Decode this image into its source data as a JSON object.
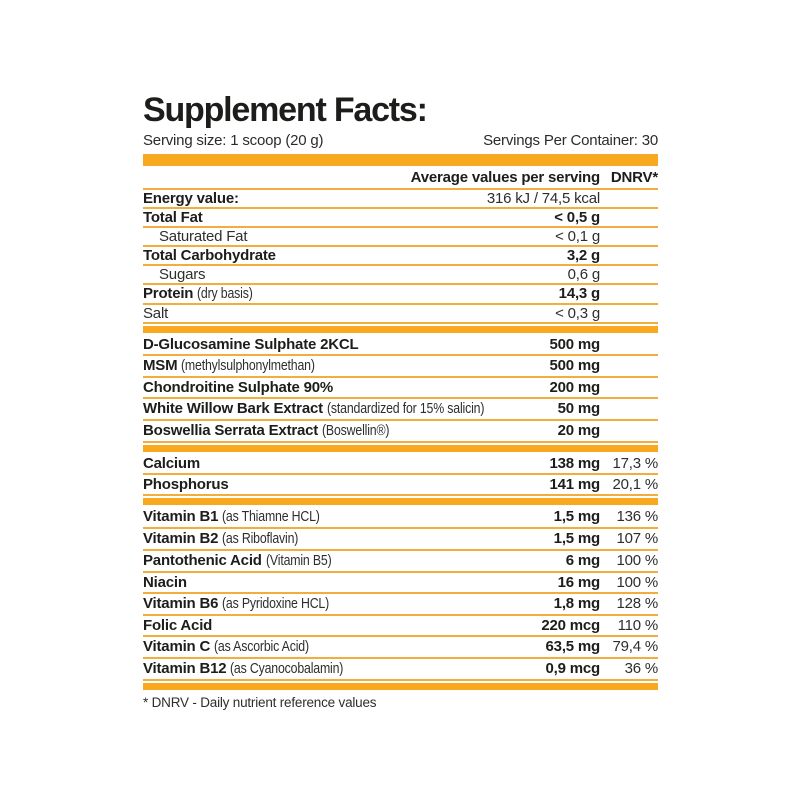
{
  "label": {
    "title": "Supplement Facts:",
    "serving_size": "Serving size: 1 scoop (20 g)",
    "servings_per_container": "Servings Per Container: 30",
    "footnote": "* DNRV - Daily nutrient reference values",
    "colors": {
      "bar_orange": "#F8A920",
      "line_orange": "#F3AD3C",
      "text_black": "#1D1D1B",
      "text_regular": "#2E2E2D"
    }
  },
  "table": {
    "header": {
      "values_col": "Average values per serving",
      "dnrv_col": "DNRV*"
    },
    "sections": [
      {
        "name": "nutrition",
        "rows": [
          {
            "label": "Energy value:",
            "note": "",
            "value": "316 kJ / 74,5 kcal",
            "dnrv": "",
            "label_bold": true,
            "value_bold": false,
            "indent": false
          },
          {
            "label": "Total Fat",
            "note": "",
            "value": "< 0,5 g",
            "dnrv": "",
            "label_bold": true,
            "value_bold": true,
            "indent": false
          },
          {
            "label": "Saturated Fat",
            "note": "",
            "value": "< 0,1 g",
            "dnrv": "",
            "label_bold": false,
            "value_bold": false,
            "indent": true
          },
          {
            "label": "Total Carbohydrate",
            "note": "",
            "value": "3,2 g",
            "dnrv": "",
            "label_bold": true,
            "value_bold": true,
            "indent": false
          },
          {
            "label": "Sugars",
            "note": "",
            "value": "0,6 g",
            "dnrv": "",
            "label_bold": false,
            "value_bold": false,
            "indent": true
          },
          {
            "label": "Protein",
            "note": "(dry basis)",
            "value": "14,3 g",
            "dnrv": "",
            "label_bold": true,
            "value_bold": true,
            "indent": false
          },
          {
            "label": "Salt",
            "note": "",
            "value": "< 0,3 g",
            "dnrv": "",
            "label_bold": false,
            "value_bold": false,
            "indent": false
          }
        ]
      },
      {
        "name": "actives",
        "rows": [
          {
            "label": "D-Glucosamine Sulphate 2KCL",
            "note": "",
            "value": "500 mg",
            "dnrv": "",
            "label_bold": true,
            "value_bold": true,
            "indent": false
          },
          {
            "label": "MSM",
            "note": "(methylsulphonylmethan)",
            "value": "500 mg",
            "dnrv": "",
            "label_bold": true,
            "value_bold": true,
            "indent": false
          },
          {
            "label": "Chondroitine Sulphate 90%",
            "note": "",
            "value": "200 mg",
            "dnrv": "",
            "label_bold": true,
            "value_bold": true,
            "indent": false
          },
          {
            "label": "White Willow Bark Extract",
            "note": "(standardized for 15% salicin)",
            "value": "50 mg",
            "dnrv": "",
            "label_bold": true,
            "value_bold": true,
            "indent": false
          },
          {
            "label": "Boswellia Serrata Extract",
            "note": "(Boswellin®)",
            "value": "20 mg",
            "dnrv": "",
            "label_bold": true,
            "value_bold": true,
            "indent": false
          }
        ]
      },
      {
        "name": "minerals",
        "rows": [
          {
            "label": "Calcium",
            "note": "",
            "value": "138 mg",
            "dnrv": "17,3 %",
            "label_bold": true,
            "value_bold": true,
            "indent": false
          },
          {
            "label": "Phosphorus",
            "note": "",
            "value": "141 mg",
            "dnrv": "20,1 %",
            "label_bold": true,
            "value_bold": true,
            "indent": false
          }
        ]
      },
      {
        "name": "vitamins",
        "rows": [
          {
            "label": "Vitamin B1",
            "note": "(as Thiamne HCL)",
            "value": "1,5 mg",
            "dnrv": "136 %",
            "label_bold": true,
            "value_bold": true,
            "indent": false
          },
          {
            "label": "Vitamin B2",
            "note": "(as Riboflavin)",
            "value": "1,5 mg",
            "dnrv": "107 %",
            "label_bold": true,
            "value_bold": true,
            "indent": false
          },
          {
            "label": "Pantothenic Acid",
            "note": "(Vitamin B5)",
            "value": "6 mg",
            "dnrv": "100 %",
            "label_bold": true,
            "value_bold": true,
            "indent": false
          },
          {
            "label": "Niacin",
            "note": "",
            "value": "16 mg",
            "dnrv": "100 %",
            "label_bold": true,
            "value_bold": true,
            "indent": false
          },
          {
            "label": "Vitamin B6",
            "note": "(as Pyridoxine HCL)",
            "value": "1,8 mg",
            "dnrv": "128 %",
            "label_bold": true,
            "value_bold": true,
            "indent": false
          },
          {
            "label": "Folic Acid",
            "note": "",
            "value": "220 mcg",
            "dnrv": "110 %",
            "label_bold": true,
            "value_bold": true,
            "indent": false
          },
          {
            "label": "Vitamin C",
            "note": "(as Ascorbic Acid)",
            "value": "63,5 mg",
            "dnrv": "79,4 %",
            "label_bold": true,
            "value_bold": true,
            "indent": false
          },
          {
            "label": "Vitamin B12",
            "note": "(as Cyanocobalamin)",
            "value": "0,9 mcg",
            "dnrv": "36 %",
            "label_bold": true,
            "value_bold": true,
            "indent": false
          }
        ]
      }
    ]
  }
}
